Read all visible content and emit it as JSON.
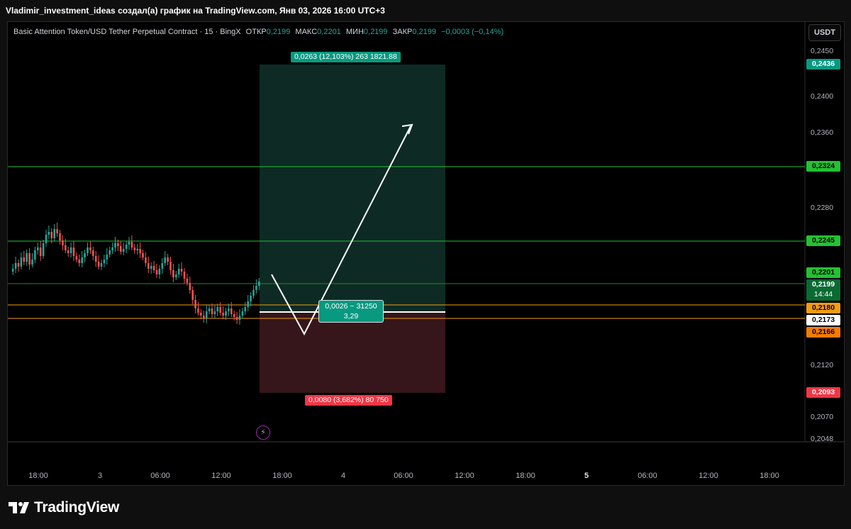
{
  "header": {
    "title": "Vladimir_investment_ideas создал(а) график на TradingView.com, Янв 03, 2026 16:00 UTC+3"
  },
  "legend": {
    "symbol": "Basic Attention Token/USD Tether Perpetual Contract · 15 · BingX",
    "o_label": "ОТКР",
    "o_value": "0,2199",
    "h_label": "МАКС",
    "h_value": "0,2201",
    "l_label": "МИН",
    "l_value": "0,2199",
    "c_label": "ЗАКР",
    "c_value": "0,2199",
    "change": "−0,0003 (−0,14%)"
  },
  "currency": "USDT",
  "price_axis": [
    "0,2450",
    "0,2400",
    "0,2360",
    "0,2280",
    "0,2120",
    "0,2070",
    "0,2048"
  ],
  "badges": {
    "target": "0,2436",
    "level_1": "0,2324",
    "level_2": "0,2245",
    "high": "0,2201",
    "last": "0,2199",
    "countdown": "14:44",
    "entry": "0,2180",
    "mid": "0,2173",
    "low_level": "0,2166",
    "stop": "0,2093"
  },
  "position": {
    "target_label": "0,0263 (12,103%) 263 1821.88",
    "stop_label": "0,0080 (3,682%) 80 750",
    "risk_line1": "0,0026 ~ 31250",
    "risk_line2": "3,29"
  },
  "time_axis": [
    {
      "label": "18:00",
      "bold": false
    },
    {
      "label": "3",
      "bold": false
    },
    {
      "label": "06:00",
      "bold": false
    },
    {
      "label": "12:00",
      "bold": false
    },
    {
      "label": "18:00",
      "bold": false
    },
    {
      "label": "4",
      "bold": false
    },
    {
      "label": "06:00",
      "bold": false
    },
    {
      "label": "12:00",
      "bold": false
    },
    {
      "label": "18:00",
      "bold": false
    },
    {
      "label": "5",
      "bold": true
    },
    {
      "label": "06:00",
      "bold": false
    },
    {
      "label": "12:00",
      "bold": false
    },
    {
      "label": "18:00",
      "bold": false
    }
  ],
  "brand": "TradingView",
  "icons": {
    "alert": "lightning-icon",
    "logo": "tradingview-logo-icon"
  },
  "colors": {
    "up": "#26a69a",
    "down": "#ef5350",
    "target_zone": "#0c2c24",
    "stop_zone": "#3a1416",
    "green_line": "#22c232",
    "orange_line": "#f39c12",
    "badge_green": "#089981",
    "badge_red": "#f23645"
  }
}
